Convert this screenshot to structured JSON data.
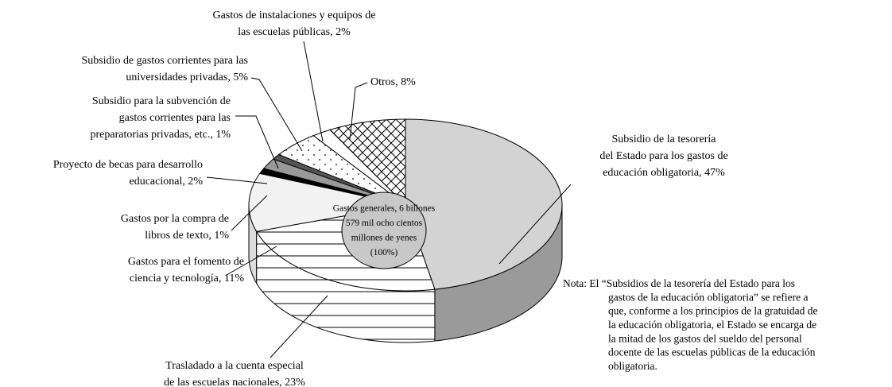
{
  "chart_data": {
    "type": "pie3d",
    "categories": [
      [
        "Subsidio de la tesorería",
        "del Estado para los gastos de",
        "educación obligatoria, 47%"
      ],
      [
        "Trasladado a la cuenta especial",
        "de las escuelas nacionales, 23%"
      ],
      [
        "Gastos para el fomento de",
        "ciencia y tecnología, 11%"
      ],
      [
        "Gastos por la compra de",
        "libros de texto, 1%"
      ],
      [
        "Proyecto de becas para desarrollo",
        "educacional, 2%"
      ],
      [
        "Subsidio para la subvención de",
        "gastos corrientes para las",
        "preparatorias privadas, etc., 1%"
      ],
      [
        "Subsidio de gastos corrientes para las",
        "universidades privadas, 5%"
      ],
      [
        "Gastos de instalaciones y equipos de",
        "las escuelas públicas, 2%"
      ],
      [
        "Otros, 8%"
      ]
    ],
    "values": [
      47,
      23,
      11,
      1,
      2,
      1,
      5,
      2,
      8
    ],
    "fills": [
      "#d3d3d3",
      "hlines",
      "#f2f2f2",
      "#000000",
      "#999999",
      "#555555",
      "dots",
      "#ffffff",
      "crosshatch"
    ],
    "side_fills": [
      "#9a9a9a",
      "hlines",
      "#dcdcdc",
      "#000000",
      "#777777",
      "#444444",
      "dots",
      "#eeeeee",
      "crosshatch"
    ],
    "center_label": [
      "Gastos generales, 6 billones",
      "579 mil ocho cientos",
      "millones de yenes",
      "(100%)"
    ],
    "note": [
      "Nota: El “Subsidios de la tesorería del Estado para los",
      "gastos de la educación obligatoria” se refiere a",
      "que, conforme a los principios de la gratuidad de",
      "la educación obligatoria, el Estado se encarga de",
      "la mitad de los gastos del sueldo del personal",
      "docente de las escuelas públicas de la educación",
      "obligatoria."
    ]
  }
}
